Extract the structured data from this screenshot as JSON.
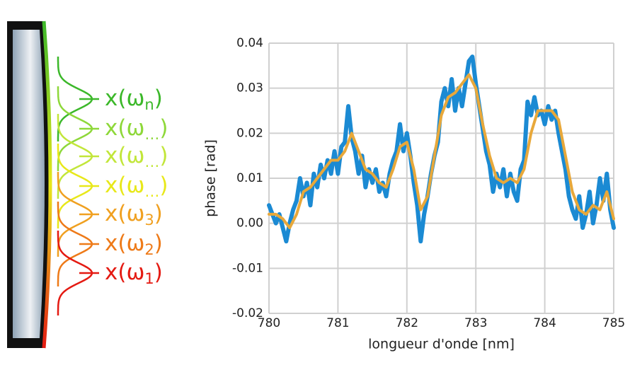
{
  "diagram": {
    "labels": [
      {
        "text": "x(ω",
        "sub": "n",
        "end": ")",
        "color": "#3cb82a"
      },
      {
        "text": "x(ω",
        "sub": "…",
        "end": ")",
        "color": "#8ed83a"
      },
      {
        "text": "x(ω",
        "sub": "…",
        "end": ")",
        "color": "#c2e63a"
      },
      {
        "text": "x(ω",
        "sub": "…",
        "end": ")",
        "color": "#e8e81a"
      },
      {
        "text": "x(ω",
        "sub": "3",
        "end": ")",
        "color": "#f0a020"
      },
      {
        "text": "x(ω",
        "sub": "2",
        "end": ")",
        "color": "#ee7a18"
      },
      {
        "text": "x(ω",
        "sub": "1",
        "end": ")",
        "color": "#e41a12"
      }
    ]
  },
  "chart_data": {
    "type": "line",
    "x_label": "longueur d'onde [nm]",
    "y_label": "phase [rad]",
    "xlim": [
      780,
      785
    ],
    "xticks": [
      780,
      781,
      782,
      783,
      784,
      785
    ],
    "ylim": [
      -0.02,
      0.04
    ],
    "yticks": [
      -0.02,
      -0.01,
      {
        "value": 0,
        "label": "0.00"
      },
      0.01,
      0.02,
      0.03,
      0.04
    ],
    "grid": true,
    "series": [
      {
        "color": "#1b8ad3",
        "width": 6,
        "x": [
          780,
          780.05,
          780.1,
          780.15,
          780.2,
          780.25,
          780.3,
          780.35,
          780.4,
          780.45,
          780.5,
          780.55,
          780.6,
          780.65,
          780.7,
          780.75,
          780.8,
          780.85,
          780.9,
          780.95,
          781,
          781.05,
          781.1,
          781.15,
          781.2,
          781.25,
          781.3,
          781.35,
          781.4,
          781.45,
          781.5,
          781.55,
          781.6,
          781.65,
          781.7,
          781.75,
          781.8,
          781.85,
          781.9,
          781.95,
          782,
          782.05,
          782.1,
          782.15,
          782.2,
          782.25,
          782.3,
          782.35,
          782.4,
          782.45,
          782.5,
          782.55,
          782.6,
          782.65,
          782.7,
          782.75,
          782.8,
          782.85,
          782.9,
          782.95,
          783,
          783.05,
          783.1,
          783.15,
          783.2,
          783.25,
          783.3,
          783.35,
          783.4,
          783.45,
          783.5,
          783.55,
          783.6,
          783.65,
          783.7,
          783.75,
          783.8,
          783.85,
          783.9,
          783.95,
          784,
          784.05,
          784.1,
          784.15,
          784.2,
          784.25,
          784.3,
          784.35,
          784.4,
          784.45,
          784.5,
          784.55,
          784.6,
          784.65,
          784.7,
          784.75,
          784.8,
          784.85,
          784.9,
          784.95,
          785
        ],
        "values": [
          0.004,
          0.002,
          0,
          0.002,
          -0.001,
          -0.004,
          0,
          0.003,
          0.005,
          0.01,
          0.006,
          0.009,
          0.004,
          0.011,
          0.008,
          0.013,
          0.01,
          0.014,
          0.011,
          0.016,
          0.011,
          0.017,
          0.018,
          0.026,
          0.019,
          0.016,
          0.011,
          0.015,
          0.008,
          0.012,
          0.009,
          0.012,
          0.007,
          0.009,
          0.006,
          0.011,
          0.014,
          0.016,
          0.022,
          0.016,
          0.02,
          0.015,
          0.009,
          0.004,
          -0.004,
          0.002,
          0.006,
          0.011,
          0.015,
          0.018,
          0.027,
          0.03,
          0.026,
          0.032,
          0.025,
          0.03,
          0.026,
          0.031,
          0.036,
          0.037,
          0.031,
          0.026,
          0.021,
          0.016,
          0.013,
          0.007,
          0.011,
          0.008,
          0.012,
          0.006,
          0.011,
          0.007,
          0.005,
          0.012,
          0.014,
          0.027,
          0.024,
          0.028,
          0.024,
          0.025,
          0.022,
          0.026,
          0.023,
          0.025,
          0.02,
          0.016,
          0.012,
          0.006,
          0.003,
          0.001,
          0.006,
          -0.001,
          0.002,
          0.007,
          0,
          0.004,
          0.01,
          0.005,
          0.011,
          0.003,
          -0.001
        ]
      },
      {
        "color": "#e8a83a",
        "width": 4,
        "x": [
          780,
          780.1,
          780.2,
          780.3,
          780.4,
          780.5,
          780.6,
          780.7,
          780.8,
          780.9,
          781,
          781.1,
          781.2,
          781.3,
          781.4,
          781.5,
          781.6,
          781.7,
          781.8,
          781.9,
          782,
          782.1,
          782.2,
          782.3,
          782.4,
          782.5,
          782.6,
          782.7,
          782.8,
          782.9,
          783,
          783.1,
          783.2,
          783.3,
          783.4,
          783.5,
          783.6,
          783.7,
          783.8,
          783.9,
          784,
          784.1,
          784.2,
          784.3,
          784.4,
          784.5,
          784.6,
          784.7,
          784.8,
          784.9,
          785
        ],
        "values": [
          0.002,
          0.002,
          0.001,
          -0.001,
          0.002,
          0.007,
          0.008,
          0.01,
          0.012,
          0.014,
          0.014,
          0.016,
          0.02,
          0.016,
          0.012,
          0.011,
          0.009,
          0.008,
          0.012,
          0.017,
          0.018,
          0.012,
          0.003,
          0.006,
          0.015,
          0.024,
          0.028,
          0.029,
          0.031,
          0.033,
          0.03,
          0.022,
          0.015,
          0.01,
          0.009,
          0.01,
          0.009,
          0.012,
          0.02,
          0.025,
          0.025,
          0.025,
          0.023,
          0.015,
          0.007,
          0.003,
          0.002,
          0.004,
          0.003,
          0.007,
          0.001
        ]
      }
    ]
  }
}
